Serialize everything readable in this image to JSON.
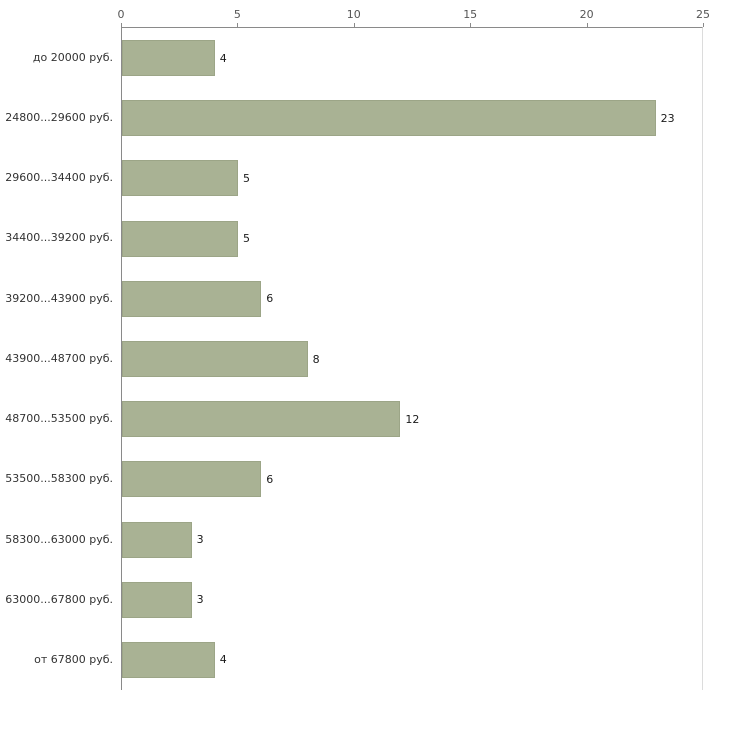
{
  "chart_data": {
    "type": "bar",
    "orientation": "horizontal",
    "title": "",
    "xlabel": "",
    "ylabel": "",
    "xlim": [
      0,
      25
    ],
    "x_ticks": [
      0,
      5,
      10,
      15,
      20,
      25
    ],
    "grid": false,
    "legend": "none",
    "bar_color": "#a9b294",
    "bar_border_color": "#9ca587",
    "categories": [
      "до 20000 руб.",
      "24800...29600 руб.",
      "29600...34400 руб.",
      "34400...39200 руб.",
      "39200...43900 руб.",
      "43900...48700 руб.",
      "48700...53500 руб.",
      "53500...58300 руб.",
      "58300...63000 руб.",
      "63000...67800 руб.",
      "от 67800 руб."
    ],
    "values": [
      4,
      23,
      5,
      5,
      6,
      8,
      12,
      6,
      3,
      3,
      4
    ]
  }
}
